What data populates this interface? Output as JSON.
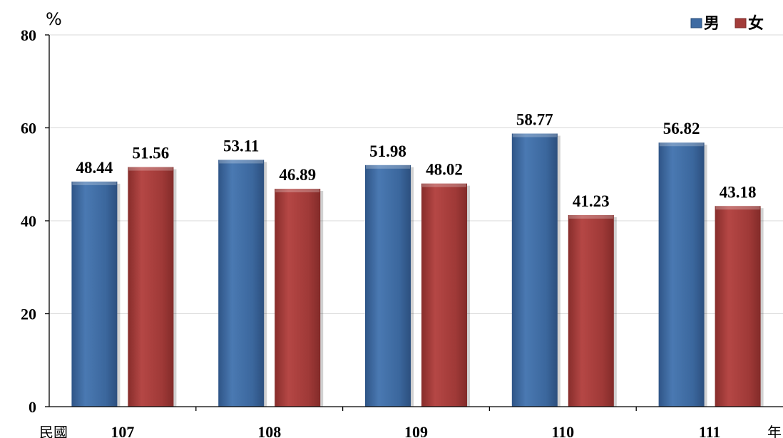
{
  "chart_data": {
    "type": "bar",
    "ylabel": "%",
    "ylim": [
      0,
      80
    ],
    "yticks": [
      "0",
      "20",
      "40",
      "60",
      "80"
    ],
    "grid": true,
    "legend_position": "top-right",
    "x_prefix": "民國",
    "x_suffix": "年",
    "categories": [
      "107",
      "108",
      "109",
      "110",
      "111"
    ],
    "series": [
      {
        "name": "男",
        "color": "#3d6aa2",
        "values": [
          48.44,
          53.11,
          51.98,
          58.77,
          56.82
        ],
        "labels": [
          "48.44",
          "53.11",
          "51.98",
          "58.77",
          "56.82"
        ]
      },
      {
        "name": "女",
        "color": "#a33c3a",
        "values": [
          51.56,
          46.89,
          48.02,
          41.23,
          43.18
        ],
        "labels": [
          "51.56",
          "46.89",
          "48.02",
          "41.23",
          "43.18"
        ]
      }
    ]
  }
}
